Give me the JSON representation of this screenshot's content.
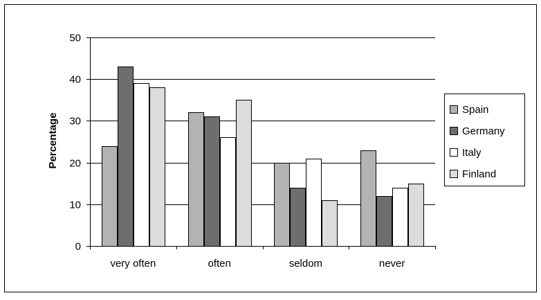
{
  "chart_data": {
    "type": "bar",
    "title": "",
    "xlabel": "",
    "ylabel": "Percentage",
    "ylim": [
      0,
      50
    ],
    "yticks": [
      0,
      10,
      20,
      30,
      40,
      50
    ],
    "grid": true,
    "legend_position": "right",
    "categories": [
      "very often",
      "often",
      "seldom",
      "never"
    ],
    "series": [
      {
        "name": "Spain",
        "color": "#b3b3b3",
        "values": [
          24,
          32,
          20,
          23
        ]
      },
      {
        "name": "Germany",
        "color": "#6e6e6e",
        "values": [
          43,
          31,
          14,
          12
        ]
      },
      {
        "name": "Italy",
        "color": "#ffffff",
        "values": [
          39,
          26,
          21,
          14
        ]
      },
      {
        "name": "Finland",
        "color": "#dcdcdc",
        "values": [
          38,
          35,
          11,
          15
        ]
      }
    ]
  }
}
